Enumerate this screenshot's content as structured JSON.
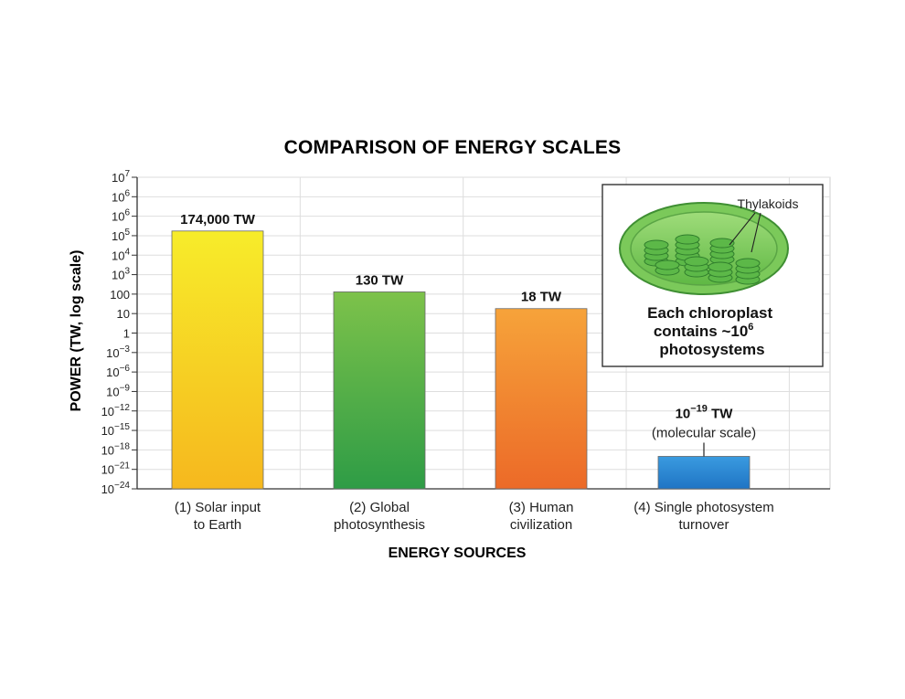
{
  "chart_data": {
    "type": "bar",
    "title": "COMPARISON OF ENERGY SCALES",
    "xlabel": "ENERGY SOURCES",
    "ylabel": "POWER (TW, log scale)",
    "yscale": "log",
    "grid": true,
    "y_tick_labels": [
      {
        "base": "10",
        "exp": "7"
      },
      {
        "base": "10",
        "exp": "6"
      },
      {
        "base": "10",
        "exp": "6"
      },
      {
        "base": "10",
        "exp": "5"
      },
      {
        "base": "10",
        "exp": "4"
      },
      {
        "base": "10",
        "exp": "3"
      },
      {
        "base": "100",
        "exp": ""
      },
      {
        "base": "10",
        "exp": ""
      },
      {
        "base": "1",
        "exp": ""
      },
      {
        "base": "10",
        "exp": "−3"
      },
      {
        "base": "10",
        "exp": "−6"
      },
      {
        "base": "10",
        "exp": "−9"
      },
      {
        "base": "10",
        "exp": "−12"
      },
      {
        "base": "10",
        "exp": "−15"
      },
      {
        "base": "10",
        "exp": "−18"
      },
      {
        "base": "10",
        "exp": "−21"
      },
      {
        "base": "10",
        "exp": "−24"
      }
    ],
    "categories": [
      [
        "(1) Solar input",
        "to Earth"
      ],
      [
        "(2) Global",
        "photosynthesis"
      ],
      [
        "(3) Human",
        "civilization"
      ],
      [
        "(4) Single photosystem",
        "turnover"
      ]
    ],
    "values": [
      174000,
      130,
      18,
      1e-19
    ],
    "value_labels": [
      {
        "base": "174,000 TW",
        "exp": "",
        "rest": ""
      },
      {
        "base": "130 TW",
        "exp": "",
        "rest": ""
      },
      {
        "base": "18 TW",
        "exp": "",
        "rest": ""
      },
      {
        "base": "10",
        "exp": "−19",
        "rest": " TW"
      }
    ],
    "value_sublabels": [
      "",
      "",
      "",
      "(molecular scale)"
    ],
    "colors": [
      {
        "top": "#f7ec2a",
        "bottom": "#f6b81e"
      },
      {
        "top": "#7dc24a",
        "bottom": "#2e9c46"
      },
      {
        "top": "#f6a33a",
        "bottom": "#ec6a28"
      },
      {
        "top": "#3a9be0",
        "bottom": "#1f74c4"
      }
    ],
    "inset": {
      "label": "Thylakoids",
      "caption_lines": [
        "Each chloroplast",
        "contains ~10",
        "photosystems"
      ],
      "caption_exp": "6"
    }
  }
}
